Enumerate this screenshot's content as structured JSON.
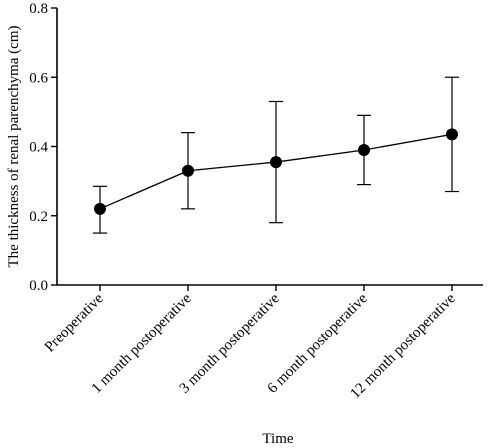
{
  "chart_data": {
    "type": "line",
    "xlabel": "Time",
    "ylabel": "The thickness of renal parenchyma (cm)",
    "ylim": [
      0.0,
      0.8
    ],
    "yticks": [
      "0.0",
      "0.2",
      "0.4",
      "0.6",
      "0.8"
    ],
    "ytick_values": [
      0.0,
      0.2,
      0.4,
      0.6,
      0.8
    ],
    "categories": [
      "Preoperative",
      "1 month postoperative",
      "3 month postoperative",
      "6 month postoperative",
      "12 month postoperative"
    ],
    "series": [
      {
        "values": [
          0.22,
          0.33,
          0.355,
          0.39,
          0.435
        ],
        "error_low": [
          0.15,
          0.22,
          0.18,
          0.29,
          0.27
        ],
        "error_high": [
          0.285,
          0.44,
          0.53,
          0.49,
          0.6
        ]
      }
    ],
    "grid": false
  }
}
